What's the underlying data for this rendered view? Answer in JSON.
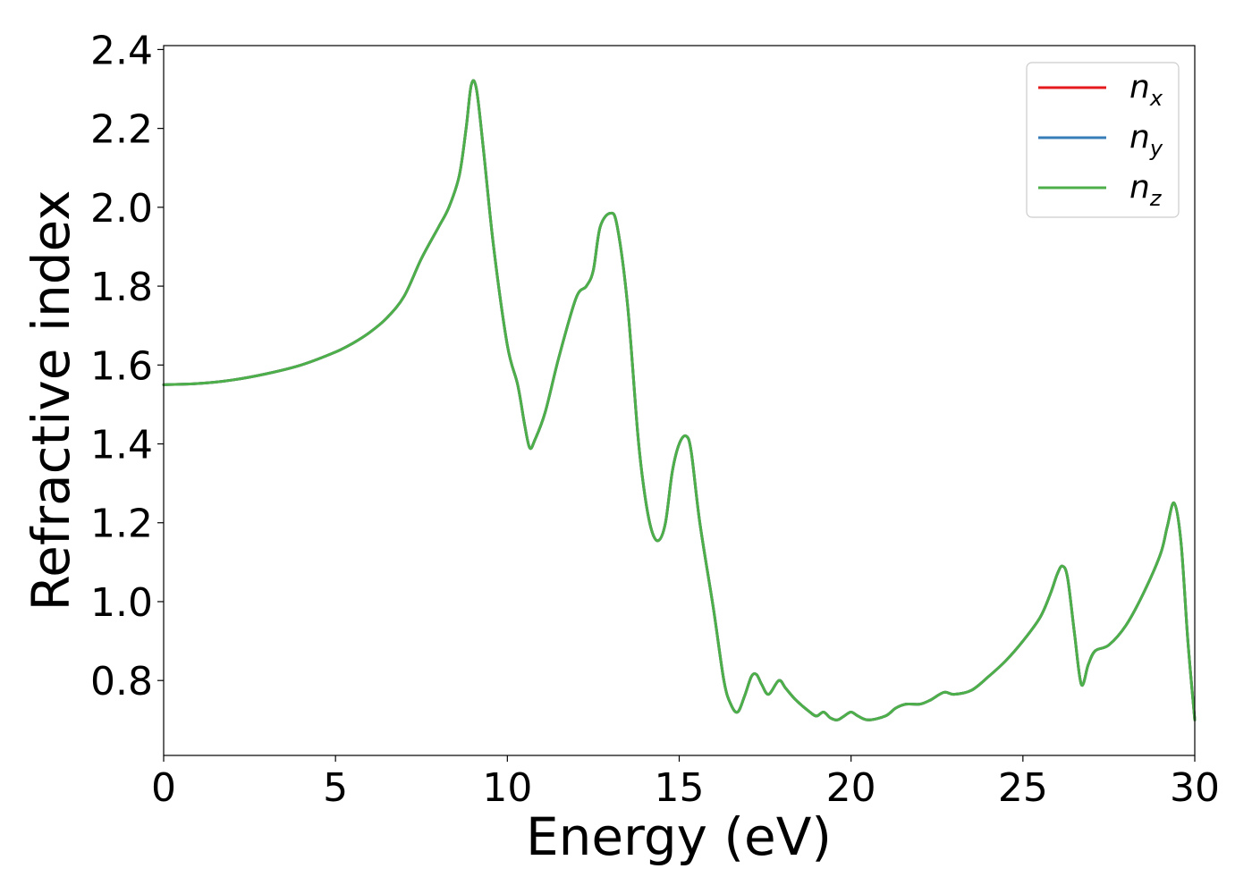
{
  "chart_data": {
    "type": "line",
    "xlabel": "Energy (eV)",
    "ylabel": "Refractive index",
    "xlim": [
      0,
      30
    ],
    "ylim": [
      0.61,
      2.41
    ],
    "xticks": [
      0,
      5,
      10,
      15,
      20,
      25,
      30
    ],
    "xtick_labels": [
      "0",
      "5",
      "10",
      "15",
      "20",
      "25",
      "30"
    ],
    "yticks": [
      0.8,
      1.0,
      1.2,
      1.4,
      1.6,
      1.8,
      2.0,
      2.2,
      2.4
    ],
    "ytick_labels": [
      "0.8",
      "1.0",
      "1.2",
      "1.4",
      "1.6",
      "1.8",
      "2.0",
      "2.2",
      "2.4"
    ],
    "grid": false,
    "legend_position": "top-right",
    "series": [
      {
        "name": "n",
        "subscript": "x",
        "color": "#e41a1c",
        "x": [
          0,
          1,
          2,
          3,
          4,
          5,
          5.5,
          6,
          6.5,
          7,
          7.5,
          8,
          8.3,
          8.6,
          8.8,
          8.95,
          9.1,
          9.3,
          9.6,
          10,
          10.3,
          10.5,
          10.65,
          10.8,
          11.1,
          11.5,
          12,
          12.3,
          12.5,
          12.7,
          13.0,
          13.2,
          13.5,
          13.8,
          14.0,
          14.2,
          14.4,
          14.6,
          14.8,
          15.0,
          15.2,
          15.35,
          15.6,
          16.0,
          16.3,
          16.5,
          16.7,
          16.9,
          17.1,
          17.25,
          17.4,
          17.6,
          17.9,
          18.1,
          18.4,
          18.8,
          19.0,
          19.2,
          19.4,
          19.6,
          19.8,
          20.0,
          20.2,
          20.5,
          21.0,
          21.3,
          21.6,
          22.0,
          22.3,
          22.7,
          23.0,
          23.5,
          24.0,
          24.5,
          25.0,
          25.5,
          25.8,
          26.0,
          26.15,
          26.3,
          26.5,
          26.7,
          26.9,
          27.1,
          27.5,
          28.0,
          28.5,
          29.0,
          29.2,
          29.4,
          29.6,
          29.8,
          30.0
        ],
        "y": [
          1.55,
          1.553,
          1.562,
          1.578,
          1.6,
          1.633,
          1.655,
          1.683,
          1.72,
          1.775,
          1.87,
          1.95,
          2.0,
          2.08,
          2.2,
          2.31,
          2.3,
          2.15,
          1.9,
          1.65,
          1.55,
          1.45,
          1.39,
          1.41,
          1.48,
          1.62,
          1.77,
          1.8,
          1.84,
          1.95,
          1.985,
          1.95,
          1.75,
          1.42,
          1.27,
          1.18,
          1.155,
          1.2,
          1.33,
          1.4,
          1.42,
          1.38,
          1.2,
          0.98,
          0.8,
          0.74,
          0.72,
          0.76,
          0.81,
          0.815,
          0.79,
          0.765,
          0.8,
          0.78,
          0.75,
          0.72,
          0.71,
          0.72,
          0.705,
          0.7,
          0.71,
          0.72,
          0.71,
          0.7,
          0.71,
          0.73,
          0.74,
          0.74,
          0.75,
          0.77,
          0.765,
          0.775,
          0.81,
          0.85,
          0.9,
          0.96,
          1.02,
          1.07,
          1.09,
          1.06,
          0.92,
          0.79,
          0.84,
          0.875,
          0.89,
          0.94,
          1.02,
          1.12,
          1.19,
          1.25,
          1.15,
          0.9,
          0.7
        ]
      },
      {
        "name": "n",
        "subscript": "y",
        "color": "#377eb8",
        "x": [
          0,
          1,
          2,
          3,
          4,
          5,
          5.5,
          6,
          6.5,
          7,
          7.5,
          8,
          8.3,
          8.6,
          8.8,
          8.95,
          9.1,
          9.3,
          9.6,
          10,
          10.3,
          10.5,
          10.65,
          10.8,
          11.1,
          11.5,
          12,
          12.3,
          12.5,
          12.7,
          13.0,
          13.2,
          13.5,
          13.8,
          14.0,
          14.2,
          14.4,
          14.6,
          14.8,
          15.0,
          15.2,
          15.35,
          15.6,
          16.0,
          16.3,
          16.5,
          16.7,
          16.9,
          17.1,
          17.25,
          17.4,
          17.6,
          17.9,
          18.1,
          18.4,
          18.8,
          19.0,
          19.2,
          19.4,
          19.6,
          19.8,
          20.0,
          20.2,
          20.5,
          21.0,
          21.3,
          21.6,
          22.0,
          22.3,
          22.7,
          23.0,
          23.5,
          24.0,
          24.5,
          25.0,
          25.5,
          25.8,
          26.0,
          26.15,
          26.3,
          26.5,
          26.7,
          26.9,
          27.1,
          27.5,
          28.0,
          28.5,
          29.0,
          29.2,
          29.4,
          29.6,
          29.8,
          30.0
        ],
        "y": [
          1.55,
          1.553,
          1.562,
          1.578,
          1.6,
          1.633,
          1.655,
          1.683,
          1.72,
          1.775,
          1.87,
          1.95,
          2.0,
          2.08,
          2.2,
          2.31,
          2.3,
          2.15,
          1.9,
          1.65,
          1.55,
          1.45,
          1.39,
          1.41,
          1.48,
          1.62,
          1.77,
          1.8,
          1.84,
          1.95,
          1.985,
          1.95,
          1.75,
          1.42,
          1.27,
          1.18,
          1.155,
          1.2,
          1.33,
          1.4,
          1.42,
          1.38,
          1.2,
          0.98,
          0.8,
          0.74,
          0.72,
          0.76,
          0.81,
          0.815,
          0.79,
          0.765,
          0.8,
          0.78,
          0.75,
          0.72,
          0.71,
          0.72,
          0.705,
          0.7,
          0.71,
          0.72,
          0.71,
          0.7,
          0.71,
          0.73,
          0.74,
          0.74,
          0.75,
          0.77,
          0.765,
          0.775,
          0.81,
          0.85,
          0.9,
          0.96,
          1.02,
          1.07,
          1.09,
          1.06,
          0.92,
          0.79,
          0.84,
          0.875,
          0.89,
          0.94,
          1.02,
          1.12,
          1.19,
          1.25,
          1.15,
          0.9,
          0.7
        ]
      },
      {
        "name": "n",
        "subscript": "z",
        "color": "#4daf4a",
        "x": [
          0,
          1,
          2,
          3,
          4,
          5,
          5.5,
          6,
          6.5,
          7,
          7.5,
          8,
          8.3,
          8.6,
          8.8,
          8.95,
          9.1,
          9.3,
          9.6,
          10,
          10.3,
          10.5,
          10.65,
          10.8,
          11.1,
          11.5,
          12,
          12.3,
          12.5,
          12.7,
          13.0,
          13.2,
          13.5,
          13.8,
          14.0,
          14.2,
          14.4,
          14.6,
          14.8,
          15.0,
          15.2,
          15.35,
          15.6,
          16.0,
          16.3,
          16.5,
          16.7,
          16.9,
          17.1,
          17.25,
          17.4,
          17.6,
          17.9,
          18.1,
          18.4,
          18.8,
          19.0,
          19.2,
          19.4,
          19.6,
          19.8,
          20.0,
          20.2,
          20.5,
          21.0,
          21.3,
          21.6,
          22.0,
          22.3,
          22.7,
          23.0,
          23.5,
          24.0,
          24.5,
          25.0,
          25.5,
          25.8,
          26.0,
          26.15,
          26.3,
          26.5,
          26.7,
          26.9,
          27.1,
          27.5,
          28.0,
          28.5,
          29.0,
          29.2,
          29.4,
          29.6,
          29.8,
          30.0
        ],
        "y": [
          1.55,
          1.553,
          1.562,
          1.578,
          1.6,
          1.633,
          1.655,
          1.683,
          1.72,
          1.775,
          1.87,
          1.95,
          2.0,
          2.08,
          2.2,
          2.31,
          2.3,
          2.15,
          1.9,
          1.65,
          1.55,
          1.45,
          1.39,
          1.41,
          1.48,
          1.62,
          1.77,
          1.8,
          1.84,
          1.95,
          1.985,
          1.95,
          1.75,
          1.42,
          1.27,
          1.18,
          1.155,
          1.2,
          1.33,
          1.4,
          1.42,
          1.38,
          1.2,
          0.98,
          0.8,
          0.74,
          0.72,
          0.76,
          0.81,
          0.815,
          0.79,
          0.765,
          0.8,
          0.78,
          0.75,
          0.72,
          0.71,
          0.72,
          0.705,
          0.7,
          0.71,
          0.72,
          0.71,
          0.7,
          0.71,
          0.73,
          0.74,
          0.74,
          0.75,
          0.77,
          0.765,
          0.775,
          0.81,
          0.85,
          0.9,
          0.96,
          1.02,
          1.07,
          1.09,
          1.06,
          0.92,
          0.79,
          0.84,
          0.875,
          0.89,
          0.94,
          1.02,
          1.12,
          1.19,
          1.25,
          1.15,
          0.9,
          0.7
        ]
      }
    ]
  }
}
